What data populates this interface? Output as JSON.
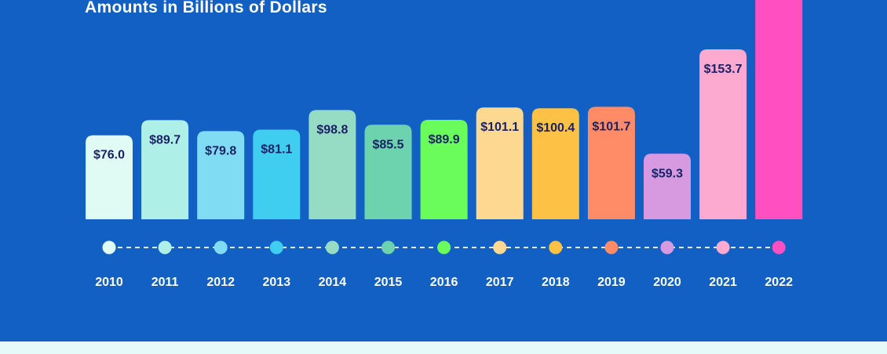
{
  "header": {
    "subtitle": "Amounts in Billions of Dollars"
  },
  "chart_data": {
    "type": "bar",
    "title": "",
    "subtitle": "Amounts in Billions of Dollars",
    "categories": [
      "2010",
      "2011",
      "2012",
      "2013",
      "2014",
      "2015",
      "2016",
      "2017",
      "2018",
      "2019",
      "2020",
      "2021",
      "2022"
    ],
    "values": [
      76.0,
      89.7,
      79.8,
      81.1,
      98.8,
      85.5,
      89.9,
      101.1,
      100.4,
      101.7,
      59.3,
      153.7,
      null
    ],
    "value_labels": [
      "$76.0",
      "$89.7",
      "$79.8",
      "$81.1",
      "$98.8",
      "$85.5",
      "$89.9",
      "$101.1",
      "$100.4",
      "$101.7",
      "$59.3",
      "$153.7",
      ""
    ],
    "colors": [
      "#e0fbf4",
      "#aef0e8",
      "#7fdcf2",
      "#3fcdf0",
      "#96dcc4",
      "#6dd3ae",
      "#6afc5a",
      "#fdd890",
      "#fdc245",
      "#ff8c66",
      "#d79ae0",
      "#fdaad0",
      "#ff4fc0"
    ],
    "legend": "none",
    "grid": false
  }
}
